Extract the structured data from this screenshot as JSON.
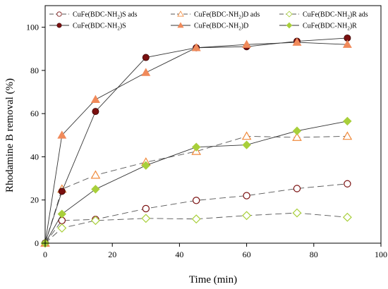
{
  "chart_data": {
    "type": "line",
    "xlabel": "Time (min)",
    "ylabel": "Rhodamine B removal (%)",
    "xlim": [
      0,
      100
    ],
    "ylim": [
      0,
      110
    ],
    "x_ticks": [
      0,
      20,
      40,
      60,
      80,
      100
    ],
    "y_ticks": [
      0,
      20,
      40,
      60,
      80,
      100
    ],
    "grid": false,
    "legend_position": "top",
    "series": [
      {
        "name": "CuFe(BDC-NH2)S ads",
        "name_parts": [
          "CuFe(BDC-NH",
          "2",
          ")S ads"
        ],
        "style": "dashed",
        "marker": "circle-open",
        "color": "#7a1010",
        "x": [
          0,
          5,
          15,
          30,
          45,
          60,
          75,
          90
        ],
        "y": [
          0,
          10.5,
          11,
          16,
          19.8,
          22,
          25.3,
          27.5
        ]
      },
      {
        "name": "CuFe(BDC-NH2)D ads",
        "name_parts": [
          "CuFe(BDC-NH",
          "2",
          ")D ads"
        ],
        "style": "dashed",
        "marker": "triangle-open",
        "color": "#f08a3c",
        "x": [
          0,
          5,
          15,
          30,
          45,
          60,
          75,
          90
        ],
        "y": [
          0,
          25,
          31.5,
          37.5,
          42.5,
          49.5,
          49,
          49.5
        ]
      },
      {
        "name": "CuFe(BDC-NH2)R ads",
        "name_parts": [
          "CuFe(BDC-NH",
          "2",
          ")R ads"
        ],
        "style": "dashed",
        "marker": "diamond-open",
        "color": "#a8cf3a",
        "x": [
          0,
          5,
          15,
          30,
          45,
          60,
          75,
          90
        ],
        "y": [
          0,
          7,
          10.5,
          11.5,
          11.2,
          12.8,
          14,
          12
        ]
      },
      {
        "name": "CuFe(BDC-NH2)S",
        "name_parts": [
          "CuFe(BDC-NH",
          "2",
          ")S"
        ],
        "style": "solid",
        "marker": "circle-filled",
        "color": "#7a1010",
        "x": [
          0,
          5,
          15,
          30,
          45,
          60,
          75,
          90
        ],
        "y": [
          0,
          24,
          61,
          86,
          90.5,
          91,
          93.5,
          95
        ]
      },
      {
        "name": "CuFe(BDC-NH2)D",
        "name_parts": [
          "CuFe(BDC-NH",
          "2",
          ")D"
        ],
        "style": "solid",
        "marker": "triangle-filled",
        "color": "#f08a5a",
        "x": [
          0,
          5,
          15,
          30,
          45,
          60,
          75,
          90
        ],
        "y": [
          0,
          50,
          66.5,
          79,
          90.5,
          92,
          93,
          92
        ]
      },
      {
        "name": "CuFe(BDC-NH2)R",
        "name_parts": [
          "CuFe(BDC-NH",
          "2",
          ")R"
        ],
        "style": "solid",
        "marker": "diamond-filled",
        "color": "#a8cf3a",
        "x": [
          0,
          5,
          15,
          30,
          45,
          60,
          75,
          90
        ],
        "y": [
          0,
          13.5,
          25,
          36,
          44.5,
          45.5,
          52,
          56.5
        ]
      }
    ]
  }
}
